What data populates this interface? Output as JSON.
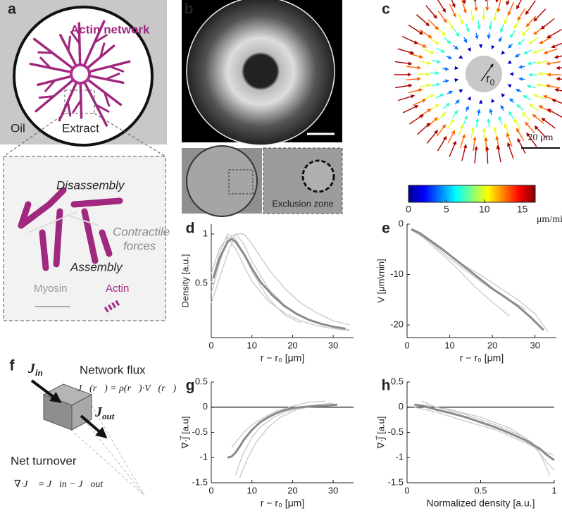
{
  "panel_labels": [
    "a",
    "b",
    "c",
    "d",
    "e",
    "f",
    "g",
    "h"
  ],
  "panel_a": {
    "network_label": "Actin network",
    "oil": "Oil",
    "extract": "Extract",
    "disassembly": "Disassembly",
    "contractile_forces": [
      "Contractile",
      "forces"
    ],
    "assembly": "Assembly",
    "myosin": "Myosin",
    "actin": "Actin"
  },
  "panel_b": {
    "inset_label": "Exclusion zone"
  },
  "panel_c": {
    "r0": [
      "r",
      "0"
    ],
    "rings": [
      {
        "radius": 14.5,
        "speed": 1
      },
      {
        "radius": 20,
        "speed": 4
      },
      {
        "radius": 25.5,
        "speed": 7
      },
      {
        "radius": 31,
        "speed": 10
      },
      {
        "radius": 36.5,
        "speed": 13
      },
      {
        "radius": 42,
        "speed": 16
      }
    ],
    "scale_bar": {
      "label": "20 μm",
      "length": 20
    },
    "colorbar": {
      "lim": [
        0,
        16.7
      ],
      "ticks": [
        0,
        5,
        10,
        15
      ],
      "unit": "μm/min"
    }
  },
  "panel_f": {
    "flux_title": "Network flux",
    "flux_equation": "J⃗(r⃗) = ρ(r⃗)·V⃗(r⃗)",
    "j_in": [
      "J",
      "in"
    ],
    "j_out": [
      "J",
      "out"
    ],
    "turnover_title": "Net turnover",
    "turnover_equation": "∇·J⃗ = J⃗in − J⃗out"
  },
  "chart_data": [
    {
      "type": "line",
      "xlabel": "r − r₀ [μm]",
      "ylabel": "Density [a.u.]",
      "xlim": [
        0,
        35
      ],
      "ylim": [
        -0.05,
        1.1
      ],
      "xticks": [
        0,
        10,
        20,
        30
      ],
      "yticks": [
        0.5,
        1
      ],
      "series": [
        {
          "color": "#c4c4c4",
          "line_width": 1.2,
          "x": [
            0,
            2,
            4,
            6,
            8,
            10,
            14,
            18,
            22,
            26,
            30,
            34
          ],
          "values": [
            0.4,
            0.7,
            0.95,
            1.0,
            0.9,
            0.72,
            0.45,
            0.28,
            0.17,
            0.1,
            0.06,
            0.03
          ]
        },
        {
          "color": "#c4c4c4",
          "line_width": 1.2,
          "x": [
            0,
            2,
            4,
            6,
            8,
            10,
            14,
            18,
            22,
            26,
            30,
            34
          ],
          "values": [
            0.6,
            0.85,
            0.97,
            0.85,
            0.68,
            0.52,
            0.32,
            0.2,
            0.12,
            0.07,
            0.04,
            0.02
          ]
        },
        {
          "color": "#c4c4c4",
          "line_width": 1.2,
          "x": [
            0,
            2,
            4,
            6,
            8,
            10,
            14,
            18,
            22,
            26,
            30,
            34
          ],
          "values": [
            0.3,
            0.55,
            0.8,
            1.0,
            1.0,
            0.9,
            0.65,
            0.45,
            0.3,
            0.2,
            0.12,
            0.08
          ]
        },
        {
          "color": "#c4c4c4",
          "line_width": 1.2,
          "x": [
            0,
            2,
            4,
            6,
            8,
            10,
            14,
            18,
            22
          ],
          "values": [
            0.5,
            0.8,
            1.0,
            0.95,
            0.8,
            0.62,
            0.35,
            0.18,
            0.1
          ]
        },
        {
          "color": "#8a8a8a",
          "line_width": 3,
          "x": [
            0.5,
            2,
            4,
            5,
            6,
            8,
            10,
            12,
            15,
            18,
            21,
            24,
            27,
            30,
            33
          ],
          "values": [
            0.55,
            0.75,
            0.92,
            0.95,
            0.92,
            0.8,
            0.65,
            0.52,
            0.38,
            0.27,
            0.19,
            0.13,
            0.09,
            0.06,
            0.04
          ]
        }
      ]
    },
    {
      "type": "line",
      "xlabel": "r − r₀ [μm]",
      "ylabel": "V [μm\\min]",
      "xlim": [
        0,
        35
      ],
      "ylim": [
        -22.5,
        0
      ],
      "xticks": [
        0,
        10,
        20,
        30
      ],
      "yticks": [
        -20,
        -10,
        0
      ],
      "series": [
        {
          "color": "#c4c4c4",
          "line_width": 1.2,
          "x": [
            1,
            4,
            8,
            12,
            16,
            20,
            24
          ],
          "values": [
            -1,
            -2.8,
            -5.8,
            -9,
            -12.5,
            -15.5,
            -18.2
          ]
        },
        {
          "color": "#c4c4c4",
          "line_width": 1.2,
          "x": [
            1,
            5,
            10,
            15,
            20,
            25,
            28
          ],
          "values": [
            -1.2,
            -3.2,
            -6.8,
            -10,
            -13,
            -15.5,
            -17
          ]
        },
        {
          "color": "#c4c4c4",
          "line_width": 1.2,
          "x": [
            2,
            6,
            10,
            14,
            18,
            22,
            26,
            30,
            33
          ],
          "values": [
            -1.5,
            -3.8,
            -6.2,
            -8.5,
            -10.5,
            -12.8,
            -15,
            -17.8,
            -21.3
          ]
        },
        {
          "color": "#8a8a8a",
          "line_width": 3,
          "x": [
            1,
            3,
            5,
            8,
            11,
            14,
            17,
            20,
            23,
            26,
            29,
            32
          ],
          "values": [
            -1,
            -1.8,
            -3,
            -4.8,
            -6.8,
            -8.8,
            -10.8,
            -12.8,
            -14.5,
            -16.3,
            -18.5,
            -21
          ]
        }
      ]
    },
    {
      "type": "line",
      "xlabel": "r − r₀ [μm]",
      "ylabel": "∇·J⃗ [a.u]",
      "xlim": [
        0,
        35
      ],
      "ylim": [
        -1.5,
        0.5
      ],
      "xticks": [
        0,
        10,
        20,
        30
      ],
      "yticks": [
        -1.5,
        -1,
        -0.5,
        0,
        0.5
      ],
      "reference_line": 0,
      "series": [
        {
          "color": "#c4c4c4",
          "line_width": 1.2,
          "x": [
            6,
            7,
            8,
            10,
            12,
            15,
            18,
            22,
            26,
            30
          ],
          "values": [
            -1.35,
            -1.1,
            -0.9,
            -0.6,
            -0.4,
            -0.22,
            -0.1,
            0,
            0.05,
            0.08
          ]
        },
        {
          "color": "#c4c4c4",
          "line_width": 1.2,
          "x": [
            5,
            6,
            8,
            10,
            13,
            16,
            20,
            24,
            28
          ],
          "values": [
            -0.8,
            -0.7,
            -0.5,
            -0.35,
            -0.2,
            -0.08,
            0.02,
            0.1,
            0.12
          ]
        },
        {
          "color": "#c4c4c4",
          "line_width": 1.2,
          "x": [
            7,
            8,
            9,
            11,
            14,
            17,
            21,
            25
          ],
          "values": [
            -1.4,
            -1.2,
            -1.0,
            -0.7,
            -0.4,
            -0.2,
            -0.05,
            0.02
          ]
        },
        {
          "color": "#8a8a8a",
          "line_width": 3,
          "x": [
            4,
            5,
            6,
            7,
            8,
            10,
            12,
            14,
            16,
            18,
            20,
            22,
            25,
            28,
            31
          ],
          "values": [
            -1,
            -0.98,
            -0.9,
            -0.78,
            -0.65,
            -0.45,
            -0.3,
            -0.2,
            -0.12,
            -0.06,
            -0.02,
            0,
            0.02,
            0.03,
            0.05
          ]
        }
      ]
    },
    {
      "type": "line",
      "xlabel": "Normalized density [a.u.]",
      "ylabel": "∇·J⃗ [a.u]",
      "xlim": [
        0,
        1
      ],
      "ylim": [
        -1.5,
        0.5
      ],
      "xticks": [
        0,
        0.5,
        1
      ],
      "yticks": [
        -1.5,
        -1,
        -0.5,
        0,
        0.5
      ],
      "reference_line": 0,
      "series": [
        {
          "color": "#c4c4c4",
          "line_width": 1.2,
          "x": [
            0.1,
            0.2,
            0.4,
            0.6,
            0.8,
            0.9,
            0.97
          ],
          "values": [
            0.12,
            0,
            -0.15,
            -0.35,
            -0.6,
            -0.9,
            -1.35
          ]
        },
        {
          "color": "#c4c4c4",
          "line_width": 1.2,
          "x": [
            0.05,
            0.2,
            0.4,
            0.6,
            0.8,
            0.9,
            1
          ],
          "values": [
            0,
            -0.1,
            -0.28,
            -0.45,
            -0.7,
            -0.85,
            -0.95
          ]
        },
        {
          "color": "#c4c4c4",
          "line_width": 1.2,
          "x": [
            0.1,
            0.3,
            0.5,
            0.7,
            0.85,
            0.95,
            1
          ],
          "values": [
            0.05,
            -0.05,
            -0.2,
            -0.42,
            -0.7,
            -1.1,
            -1.25
          ]
        },
        {
          "color": "#8a8a8a",
          "line_width": 3,
          "x": [
            0.05,
            0.1,
            0.2,
            0.3,
            0.4,
            0.5,
            0.6,
            0.7,
            0.8,
            0.9,
            0.95,
            1
          ],
          "values": [
            0.05,
            0.03,
            -0.05,
            -0.12,
            -0.2,
            -0.3,
            -0.4,
            -0.52,
            -0.65,
            -0.82,
            -0.95,
            -1.05
          ]
        }
      ]
    }
  ]
}
